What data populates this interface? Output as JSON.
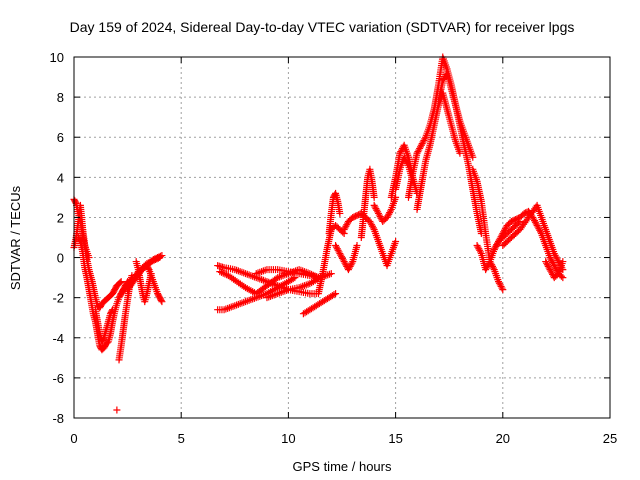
{
  "chart_data": {
    "type": "scatter",
    "title": "Day 159 of 2024, Sidereal Day-to-day VTEC variation (SDTVAR) for receiver lpgs",
    "xlabel": "GPS time / hours",
    "ylabel": "SDTVAR / TECUs",
    "xlim": [
      0,
      25
    ],
    "ylim": [
      -8,
      10
    ],
    "xticks": [
      0,
      5,
      10,
      15,
      20,
      25
    ],
    "xtick_labels": [
      "0",
      "5",
      "10",
      "15",
      "20",
      "25"
    ],
    "yticks": [
      -8,
      -6,
      -4,
      -2,
      0,
      2,
      4,
      6,
      8,
      10
    ],
    "ytick_labels": [
      "-8",
      "-6",
      "-4",
      "-2",
      "0",
      "2",
      "4",
      "6",
      "8",
      "10"
    ],
    "grid": true,
    "marker": "+",
    "marker_color": "#ff0000",
    "series": [
      {
        "name": "lpgs",
        "tracks": [
          {
            "x": [
              0.0,
              0.1,
              0.2,
              0.3,
              0.4,
              0.55,
              0.7,
              0.85,
              1.0,
              1.1,
              1.2,
              1.3,
              1.4,
              1.5,
              1.6,
              1.7,
              1.8,
              1.9,
              2.0,
              2.1,
              2.2
            ],
            "y": [
              0.5,
              1.0,
              1.8,
              2.6,
              1.5,
              0.2,
              -0.6,
              -1.2,
              -2.0,
              -2.4,
              -2.5,
              -2.3,
              -2.2,
              -2.1,
              -2.0,
              -1.9,
              -1.8,
              -1.6,
              -1.4,
              -1.3,
              -1.2
            ]
          },
          {
            "x": [
              0.0,
              0.1,
              0.2,
              0.3,
              0.4,
              0.5,
              0.6,
              0.7
            ],
            "y": [
              2.9,
              2.7,
              2.2,
              1.8,
              1.2,
              0.6,
              0.3,
              0.0
            ]
          },
          {
            "x": [
              0.2,
              0.3,
              0.4,
              0.5,
              0.6,
              0.7,
              0.8,
              0.9,
              1.0,
              1.1,
              1.2,
              1.3,
              1.4,
              1.5,
              1.6,
              1.7,
              1.8,
              1.9,
              2.0,
              2.1,
              2.2,
              2.3,
              2.4,
              2.5
            ],
            "y": [
              1.0,
              0.8,
              0.3,
              -0.5,
              -1.0,
              -1.6,
              -2.2,
              -2.8,
              -3.2,
              -3.8,
              -4.4,
              -4.6,
              -4.5,
              -4.3,
              -4.2,
              -3.8,
              -3.2,
              -2.7,
              -2.3,
              -2.0,
              -1.8,
              -1.6,
              -1.4,
              -1.2
            ]
          },
          {
            "x": [
              1.0,
              1.1,
              1.2,
              1.3,
              1.4,
              1.5,
              1.6,
              1.7,
              1.8
            ],
            "y": [
              -2.6,
              -3.2,
              -3.8,
              -4.2,
              -4.0,
              -3.6,
              -3.2,
              -2.8,
              -2.6
            ]
          },
          {
            "x": [
              2.1,
              2.2,
              2.3,
              2.4,
              2.5,
              2.6,
              2.7
            ],
            "y": [
              -5.1,
              -4.4,
              -3.6,
              -2.8,
              -2.1,
              -1.4,
              -0.9
            ]
          },
          {
            "x": [
              2.2,
              2.4,
              2.6,
              2.8,
              3.0,
              3.2,
              3.4,
              3.6,
              3.8,
              4.0
            ],
            "y": [
              -1.8,
              -1.5,
              -1.2,
              -1.0,
              -0.7,
              -0.5,
              -0.3,
              -0.2,
              -0.1,
              0.0
            ]
          },
          {
            "x": [
              2.5,
              2.7,
              2.9,
              3.1,
              3.3,
              3.5,
              3.7,
              3.9,
              4.1
            ],
            "y": [
              -1.6,
              -1.3,
              -1.0,
              -0.7,
              -0.5,
              -0.3,
              -0.1,
              0.0,
              0.1
            ]
          },
          {
            "x": [
              2.9,
              3.0,
              3.1,
              3.2,
              3.3,
              3.4,
              3.5,
              3.6
            ],
            "y": [
              -0.2,
              -0.6,
              -1.2,
              -1.8,
              -2.2,
              -1.8,
              -1.3,
              -0.8
            ]
          },
          {
            "x": [
              3.4,
              3.5,
              3.6,
              3.7,
              3.8,
              3.9,
              4.0,
              4.1
            ],
            "y": [
              -0.4,
              -0.6,
              -0.9,
              -1.2,
              -1.5,
              -1.8,
              -2.0,
              -2.2
            ]
          },
          {
            "x": [
              2.0
            ],
            "y": [
              -7.6
            ]
          },
          {
            "x": [
              6.7,
              7.0,
              7.5,
              8.0,
              8.5,
              9.0,
              9.5,
              10.0,
              10.5,
              11.0,
              11.3
            ],
            "y": [
              -0.4,
              -0.5,
              -0.6,
              -0.8,
              -1.0,
              -1.2,
              -1.4,
              -1.6,
              -1.7,
              -1.8,
              -1.8
            ]
          },
          {
            "x": [
              6.7,
              7.0,
              7.5,
              8.0,
              8.5,
              9.0,
              9.5,
              10.0,
              10.3
            ],
            "y": [
              -2.6,
              -2.6,
              -2.4,
              -2.2,
              -2.0,
              -1.8,
              -1.5,
              -1.2,
              -1.0
            ]
          },
          {
            "x": [
              6.8,
              7.2,
              7.6,
              8.0,
              8.5,
              9.0,
              9.5,
              10.0,
              10.5,
              11.0,
              11.4
            ],
            "y": [
              -0.7,
              -0.9,
              -1.2,
              -1.5,
              -1.8,
              -1.4,
              -1.0,
              -0.8,
              -0.6,
              -0.8,
              -1.0
            ]
          },
          {
            "x": [
              8.5,
              9.0,
              9.5,
              10.0,
              10.5,
              11.0,
              11.5
            ],
            "y": [
              -0.8,
              -0.6,
              -0.6,
              -0.7,
              -0.8,
              -0.9,
              -1.0
            ]
          },
          {
            "x": [
              9.0,
              9.5,
              10.0,
              10.5,
              11.0,
              11.5,
              12.0
            ],
            "y": [
              -2.0,
              -1.8,
              -1.6,
              -1.5,
              -1.3,
              -1.0,
              -0.8
            ]
          },
          {
            "x": [
              10.7,
              11.0,
              11.3,
              11.6,
              11.9,
              12.2
            ],
            "y": [
              -2.8,
              -2.6,
              -2.4,
              -2.2,
              -2.0,
              -1.8
            ]
          },
          {
            "x": [
              11.4,
              11.6,
              11.8,
              12.0,
              12.2,
              12.4,
              12.6
            ],
            "y": [
              -1.8,
              -0.8,
              0.4,
              1.4,
              1.6,
              1.4,
              1.2
            ]
          },
          {
            "x": [
              11.9,
              12.0,
              12.1,
              12.2,
              12.3,
              12.4
            ],
            "y": [
              1.2,
              2.2,
              3.0,
              3.2,
              2.8,
              2.2
            ]
          },
          {
            "x": [
              12.2,
              12.4,
              12.6,
              12.8,
              13.0,
              13.2
            ],
            "y": [
              0.6,
              0.2,
              -0.2,
              -0.6,
              -0.2,
              0.6
            ]
          },
          {
            "x": [
              12.6,
              12.8,
              13.0,
              13.2,
              13.4,
              13.6,
              13.8,
              14.0,
              14.2,
              14.4,
              14.6,
              14.8,
              15.0
            ],
            "y": [
              1.4,
              1.8,
              2.0,
              2.1,
              2.2,
              2.0,
              1.8,
              1.4,
              0.8,
              0.2,
              -0.4,
              0.2,
              0.8
            ]
          },
          {
            "x": [
              13.4,
              13.5,
              13.6,
              13.7,
              13.8,
              13.9,
              14.0
            ],
            "y": [
              1.0,
              2.0,
              3.0,
              4.0,
              4.4,
              3.8,
              3.0
            ]
          },
          {
            "x": [
              14.0,
              14.2,
              14.4,
              14.6,
              14.8,
              15.0
            ],
            "y": [
              2.6,
              2.2,
              1.8,
              2.0,
              2.4,
              3.0
            ]
          },
          {
            "x": [
              15.0,
              15.2,
              15.4,
              15.6,
              15.8
            ],
            "y": [
              3.4,
              4.4,
              5.0,
              4.6,
              3.8
            ]
          },
          {
            "x": [
              14.8,
              15.0,
              15.2,
              15.4,
              15.6,
              15.8,
              16.0
            ],
            "y": [
              3.0,
              4.0,
              5.2,
              5.6,
              5.0,
              4.0,
              3.2
            ]
          },
          {
            "x": [
              15.6,
              15.8,
              16.0,
              16.2,
              16.4,
              16.6,
              16.8,
              17.0,
              17.2,
              17.4,
              17.6,
              17.8,
              18.0,
              18.2,
              18.4,
              18.6
            ],
            "y": [
              3.0,
              4.2,
              5.2,
              5.6,
              6.0,
              6.6,
              7.4,
              8.6,
              10.0,
              9.4,
              8.6,
              7.6,
              6.8,
              6.2,
              5.6,
              5.0
            ]
          },
          {
            "x": [
              16.0,
              16.2,
              16.4,
              16.6,
              16.8,
              17.0,
              17.2,
              17.4,
              17.6,
              17.8,
              18.0
            ],
            "y": [
              2.4,
              3.6,
              4.8,
              5.6,
              6.6,
              7.6,
              8.2,
              7.4,
              6.6,
              5.8,
              5.2
            ]
          },
          {
            "x": [
              17.0,
              17.2,
              17.4,
              17.6,
              17.8,
              18.0,
              18.2,
              18.4,
              18.6,
              18.8,
              19.0
            ],
            "y": [
              7.8,
              8.8,
              9.2,
              8.4,
              7.6,
              6.6,
              5.6,
              4.6,
              3.4,
              2.2,
              1.2
            ]
          },
          {
            "x": [
              18.6,
              18.8,
              19.0,
              19.2,
              19.4,
              19.6,
              19.8,
              20.0
            ],
            "y": [
              4.4,
              3.8,
              2.8,
              1.2,
              -0.2,
              -0.6,
              -1.2,
              -1.6
            ]
          },
          {
            "x": [
              18.8,
              19.0,
              19.2,
              19.4,
              19.6,
              19.8,
              20.0,
              20.2,
              20.4,
              20.6,
              20.8
            ],
            "y": [
              0.6,
              0.2,
              -0.6,
              -0.2,
              0.4,
              0.8,
              1.0,
              1.2,
              1.4,
              1.6,
              1.8
            ]
          },
          {
            "x": [
              19.6,
              19.8,
              20.0,
              20.2,
              20.4,
              20.6,
              20.8,
              21.0,
              21.2,
              21.4,
              21.6,
              21.8,
              22.0,
              22.2,
              22.4,
              22.6,
              22.8
            ],
            "y": [
              0.4,
              0.8,
              1.2,
              1.6,
              1.8,
              1.9,
              2.0,
              2.2,
              2.3,
              2.0,
              1.6,
              1.2,
              0.6,
              0.0,
              -0.4,
              -0.8,
              -1.0
            ]
          },
          {
            "x": [
              20.0,
              20.4,
              20.8,
              21.2,
              21.6,
              22.0,
              22.4,
              22.8
            ],
            "y": [
              0.6,
              1.0,
              1.4,
              2.0,
              2.6,
              1.4,
              0.2,
              -0.6
            ]
          },
          {
            "x": [
              22.0,
              22.2,
              22.4,
              22.6,
              22.8
            ],
            "y": [
              -0.2,
              -0.6,
              -1.0,
              -0.8,
              -0.2
            ]
          }
        ]
      }
    ]
  }
}
